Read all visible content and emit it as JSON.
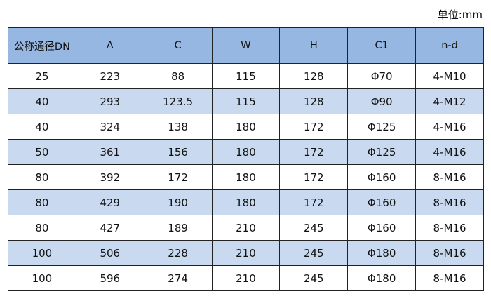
{
  "unit_label": "单位:mm",
  "columns": [
    "公称通径DN",
    "A",
    "C",
    "W",
    "H",
    "C1",
    "n-d"
  ],
  "rows": [
    [
      "25",
      "223",
      "88",
      "115",
      "128",
      "Φ70",
      "4-M10"
    ],
    [
      "40",
      "293",
      "123.5",
      "115",
      "128",
      "Φ90",
      "4-M12"
    ],
    [
      "40",
      "324",
      "138",
      "180",
      "172",
      "Φ125",
      "4-M16"
    ],
    [
      "50",
      "361",
      "156",
      "180",
      "172",
      "Φ125",
      "4-M16"
    ],
    [
      "80",
      "392",
      "172",
      "180",
      "172",
      "Φ160",
      "8-M16"
    ],
    [
      "80",
      "429",
      "190",
      "180",
      "172",
      "Φ160",
      "8-M16"
    ],
    [
      "80",
      "427",
      "189",
      "210",
      "245",
      "Φ160",
      "8-M16"
    ],
    [
      "100",
      "506",
      "228",
      "210",
      "245",
      "Φ180",
      "8-M16"
    ],
    [
      "100",
      "596",
      "274",
      "210",
      "245",
      "Φ180",
      "8-M16"
    ]
  ],
  "colors": {
    "header": "#95b7e2",
    "stripe": "#c9daf0"
  }
}
